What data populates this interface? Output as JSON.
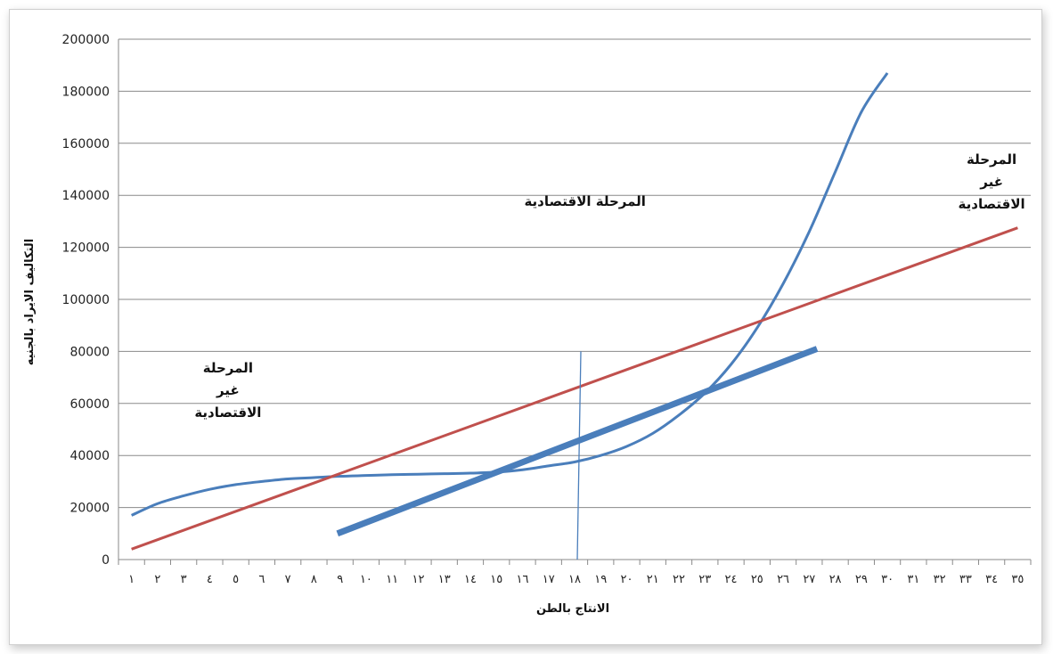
{
  "chart_data": {
    "type": "line",
    "xlabel": "الانتاج بالطن",
    "ylabel": "التكاليف الايراد بالجنيه",
    "ylim": [
      0,
      200000
    ],
    "yticks": [
      0,
      20000,
      40000,
      60000,
      80000,
      100000,
      120000,
      140000,
      160000,
      180000,
      200000
    ],
    "x_tick_labels": [
      "١",
      "٢",
      "٣",
      "٤",
      "٥",
      "٦",
      "٧",
      "٨",
      "٩",
      "١٠",
      "١١",
      "١٢",
      "١٣",
      "١٤",
      "١٥",
      "١٦",
      "١٧",
      "١٨",
      "١٩",
      "٢٠",
      "٢١",
      "٢٢",
      "٢٣",
      "٢٤",
      "٢٥",
      "٢٦",
      "٢٧",
      "٢٨",
      "٢٩",
      "٣٠",
      "٣١",
      "٣٢",
      "٣٣",
      "٣٤",
      "٣٥"
    ],
    "grid": "horizontal",
    "series": [
      {
        "color": "#4a7ebb",
        "points": [
          [
            1,
            17000
          ],
          [
            2,
            21500
          ],
          [
            3,
            24500
          ],
          [
            4,
            27000
          ],
          [
            5,
            28800
          ],
          [
            6,
            30000
          ],
          [
            7,
            31000
          ],
          [
            8,
            31500
          ],
          [
            9,
            32000
          ],
          [
            10,
            32300
          ],
          [
            11,
            32600
          ],
          [
            12,
            32800
          ],
          [
            13,
            33000
          ],
          [
            14,
            33200
          ],
          [
            15,
            33600
          ],
          [
            16,
            34500
          ],
          [
            17,
            36000
          ],
          [
            18,
            37500
          ],
          [
            19,
            40000
          ],
          [
            20,
            43500
          ],
          [
            21,
            48500
          ],
          [
            22,
            55500
          ],
          [
            23,
            64000
          ],
          [
            24,
            75000
          ],
          [
            25,
            89000
          ],
          [
            26,
            106000
          ],
          [
            27,
            126000
          ],
          [
            28,
            149000
          ],
          [
            29,
            172000
          ],
          [
            30,
            187000
          ]
        ]
      },
      {
        "color": "#c0504d",
        "points": [
          [
            1,
            4000
          ],
          [
            35,
            127500
          ]
        ]
      },
      {
        "color": "#4a7ebb",
        "points": [
          [
            8.9,
            10000
          ],
          [
            27.3,
            81000
          ]
        ]
      }
    ],
    "vertical_line": {
      "x": 18,
      "y_top": 80000,
      "color": "#4a7ebb"
    },
    "annotations": [
      {
        "lines": [
          "المرحلة",
          "غير",
          "الاقتصادية"
        ],
        "x": 4.7,
        "y": 72000
      },
      {
        "lines": [
          "المرحلة الاقتصادية"
        ],
        "x": 18.4,
        "y": 136000
      },
      {
        "lines": [
          "المرحلة",
          "غير",
          "الاقتصادية"
        ],
        "x": 34,
        "y": 152000
      }
    ]
  }
}
